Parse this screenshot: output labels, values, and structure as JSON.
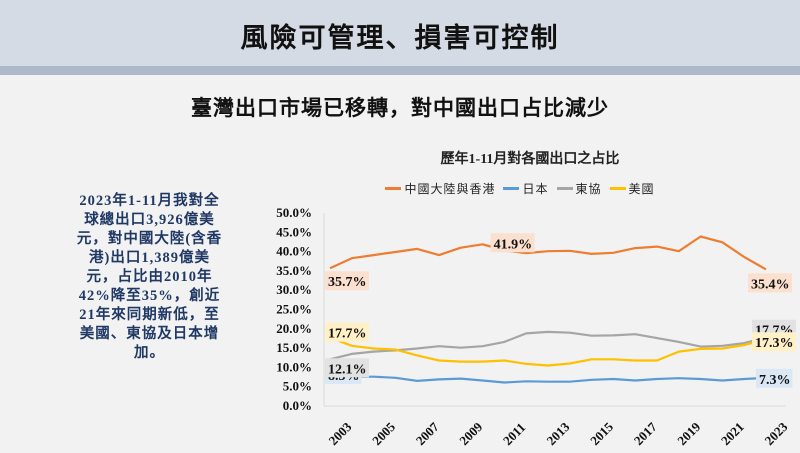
{
  "header": {
    "title": "風險可管理、損害可控制"
  },
  "subtitle": "臺灣出口市場已移轉，對中國出口占比減少",
  "summary": {
    "lines": [
      "2023年1-11月我對全",
      "球總出口3,926億美",
      "元，對中國大陸(含香",
      "港)出口1,389億美",
      "元，占比由2010年",
      "42%降至35%，創近",
      "21年來同期新低，至",
      "美國、東協及日本增",
      "加。"
    ]
  },
  "chart_data": {
    "type": "line",
    "title": "歷年1-11月對各國出口之占比",
    "xlabel": "",
    "ylabel": "",
    "ylim": [
      0,
      50
    ],
    "yticks": [
      "0.0%",
      "5.0%",
      "10.0%",
      "15.0%",
      "20.0%",
      "25.0%",
      "30.0%",
      "35.0%",
      "40.0%",
      "45.0%",
      "50.0%"
    ],
    "x": [
      2003,
      2004,
      2005,
      2006,
      2007,
      2008,
      2009,
      2010,
      2011,
      2012,
      2013,
      2014,
      2015,
      2016,
      2017,
      2018,
      2019,
      2020,
      2021,
      2022,
      2023
    ],
    "xtick_labels": [
      "2003",
      "2005",
      "2007",
      "2009",
      "2011",
      "2013",
      "2015",
      "2017",
      "2019",
      "2021",
      "2023"
    ],
    "legend_position": "top",
    "grid": false,
    "series": [
      {
        "name": "中國大陸與香港",
        "color": "#ed7d31",
        "label_bg": "#fbe0cf",
        "values": [
          35.7,
          38.3,
          39.1,
          39.9,
          40.7,
          39.1,
          41.0,
          41.9,
          40.3,
          39.6,
          40.1,
          40.2,
          39.4,
          39.7,
          40.9,
          41.3,
          40.1,
          43.9,
          42.4,
          38.6,
          35.4
        ],
        "labels": [
          {
            "index": 0,
            "text": "35.7%"
          },
          {
            "index": 7,
            "text": "41.9%"
          },
          {
            "index": 20,
            "text": "35.4%"
          }
        ]
      },
      {
        "name": "日本",
        "color": "#5b9bd5",
        "label_bg": "#dae8f6",
        "values": [
          8.3,
          7.6,
          7.6,
          7.3,
          6.5,
          6.9,
          7.1,
          6.6,
          6.1,
          6.4,
          6.3,
          6.3,
          6.8,
          7.0,
          6.6,
          7.0,
          7.2,
          7.0,
          6.6,
          7.0,
          7.3
        ],
        "labels": [
          {
            "index": 0,
            "text": "8.3%"
          },
          {
            "index": 20,
            "text": "7.3%"
          }
        ]
      },
      {
        "name": "東協",
        "color": "#a5a5a5",
        "label_bg": "#e2e2e2",
        "values": [
          12.1,
          13.5,
          14.1,
          14.4,
          14.9,
          15.5,
          15.1,
          15.5,
          16.6,
          18.8,
          19.2,
          19.0,
          18.2,
          18.3,
          18.6,
          17.6,
          16.6,
          15.4,
          15.6,
          16.3,
          17.7
        ],
        "labels": [
          {
            "index": 0,
            "text": "12.1%"
          },
          {
            "index": 20,
            "text": "17.7%"
          }
        ]
      },
      {
        "name": "美國",
        "color": "#ffc000",
        "label_bg": "#fff0c8",
        "values": [
          17.7,
          15.6,
          14.9,
          14.6,
          13.1,
          11.8,
          11.5,
          11.5,
          11.8,
          10.9,
          10.5,
          11.0,
          12.1,
          12.1,
          11.8,
          11.8,
          14.1,
          14.8,
          14.9,
          15.8,
          17.3
        ],
        "labels": [
          {
            "index": 0,
            "text": "17.7%"
          },
          {
            "index": 20,
            "text": "17.3%"
          }
        ]
      }
    ]
  }
}
